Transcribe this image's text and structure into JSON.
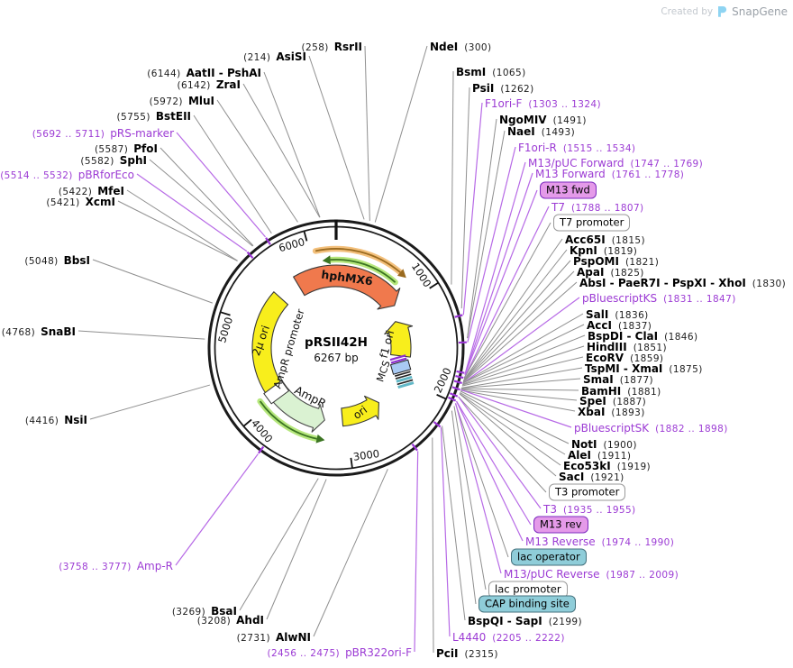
{
  "watermark": {
    "created_by": "Created by",
    "brand": "SnapGene"
  },
  "plasmid": {
    "name": "pRSII42H",
    "size": "6267 bp",
    "length_bp": 6267
  },
  "axis_ticks": [
    {
      "label": "1000"
    },
    {
      "label": "2000"
    },
    {
      "label": "3000"
    },
    {
      "label": "4000"
    },
    {
      "label": "5000"
    },
    {
      "label": "6000"
    }
  ],
  "features": [
    {
      "name": "hphMX6",
      "label": "hphMX6",
      "color": "#f0794d"
    },
    {
      "name": "f1 ori",
      "label": "f1 ori",
      "color": "#f8ee1c"
    },
    {
      "name": "ori",
      "label": "ori",
      "color": "#f8ee1c"
    },
    {
      "name": "AmpR",
      "label": "AmpR",
      "color": "#daf2d2"
    },
    {
      "name": "AmpR promoter",
      "label": "AmpR promoter",
      "color": "#ffffff"
    },
    {
      "name": "2µ ori",
      "label": "2µ ori",
      "color": "#f8ee1c"
    },
    {
      "name": "MCS",
      "label": "MCS",
      "color": "#a9caf3"
    }
  ],
  "colors": {
    "enzyme_text": "#000000",
    "position_text": "#1c1c1c",
    "primer_text": "#9c3bd4",
    "enzyme_line": "#8f8f8f",
    "primer_line": "#b76ae6",
    "ring": "#1b1b1b",
    "marker": "#9a35d6",
    "tag_purple_fill": "#e49ae9",
    "tag_purple_border": "#7c2abf",
    "tag_white_fill": "#ffffff",
    "tag_white_border": "#999999",
    "tag_teal_fill": "#8fcdd9",
    "tag_teal_border": "#44717d"
  },
  "callouts": [
    {
      "name": "RsrII",
      "pos": "(258)",
      "kind": "enzyme",
      "side": "left"
    },
    {
      "name": "AsiSI",
      "pos": "(214)",
      "kind": "enzyme",
      "side": "left"
    },
    {
      "name": "AatII - PshAI",
      "pos": "(6144)",
      "kind": "enzyme",
      "side": "left"
    },
    {
      "name": "ZraI",
      "pos": "(6142)",
      "kind": "enzyme",
      "side": "left"
    },
    {
      "name": "MluI",
      "pos": "(5972)",
      "kind": "enzyme",
      "side": "left"
    },
    {
      "name": "BstEII",
      "pos": "(5755)",
      "kind": "enzyme",
      "side": "left"
    },
    {
      "name": "pRS-marker",
      "pos": "(5692 .. 5711)",
      "kind": "primer",
      "side": "left"
    },
    {
      "name": "PfoI",
      "pos": "(5587)",
      "kind": "enzyme",
      "side": "left"
    },
    {
      "name": "SphI",
      "pos": "(5582)",
      "kind": "enzyme",
      "side": "left"
    },
    {
      "name": "pBRforEco",
      "pos": "(5514 .. 5532)",
      "kind": "primer",
      "side": "left"
    },
    {
      "name": "MfeI",
      "pos": "(5422)",
      "kind": "enzyme",
      "side": "left"
    },
    {
      "name": "XcmI",
      "pos": "(5421)",
      "kind": "enzyme",
      "side": "left"
    },
    {
      "name": "BbsI",
      "pos": "(5048)",
      "kind": "enzyme",
      "side": "left"
    },
    {
      "name": "SnaBI",
      "pos": "(4768)",
      "kind": "enzyme",
      "side": "left"
    },
    {
      "name": "NsiI",
      "pos": "(4416)",
      "kind": "enzyme",
      "side": "left"
    },
    {
      "name": "Amp-R",
      "pos": "(3758 .. 3777)",
      "kind": "primer",
      "side": "left"
    },
    {
      "name": "BsaI",
      "pos": "(3269)",
      "kind": "enzyme",
      "side": "left"
    },
    {
      "name": "AhdI",
      "pos": "(3208)",
      "kind": "enzyme",
      "side": "left"
    },
    {
      "name": "AlwNI",
      "pos": "(2731)",
      "kind": "enzyme",
      "side": "left"
    },
    {
      "name": "pBR322ori-F",
      "pos": "(2456 .. 2475)",
      "kind": "primer",
      "side": "left"
    },
    {
      "name": "NdeI",
      "pos": "(300)",
      "kind": "enzyme",
      "side": "right"
    },
    {
      "name": "BsmI",
      "pos": "(1065)",
      "kind": "enzyme",
      "side": "right"
    },
    {
      "name": "PsiI",
      "pos": "(1262)",
      "kind": "enzyme",
      "side": "right"
    },
    {
      "name": "F1ori-F",
      "pos": "(1303 .. 1324)",
      "kind": "primer",
      "side": "right"
    },
    {
      "name": "NgoMIV",
      "pos": "(1491)",
      "kind": "enzyme",
      "side": "right"
    },
    {
      "name": "NaeI",
      "pos": "(1493)",
      "kind": "enzyme",
      "side": "right"
    },
    {
      "name": "F1ori-R",
      "pos": "(1515 .. 1534)",
      "kind": "primer",
      "side": "right"
    },
    {
      "name": "M13/pUC Forward",
      "pos": "(1747 .. 1769)",
      "kind": "primer",
      "side": "right"
    },
    {
      "name": "M13 Forward",
      "pos": "(1761 .. 1778)",
      "kind": "primer",
      "side": "right"
    },
    {
      "name": "M13 fwd",
      "pos": "",
      "kind": "tag-purple",
      "side": "right"
    },
    {
      "name": "T7",
      "pos": "(1788 .. 1807)",
      "kind": "primer",
      "side": "right"
    },
    {
      "name": "T7 promoter",
      "pos": "",
      "kind": "tag-white",
      "side": "right"
    },
    {
      "name": "Acc65I",
      "pos": "(1815)",
      "kind": "enzyme",
      "side": "right"
    },
    {
      "name": "KpnI",
      "pos": "(1819)",
      "kind": "enzyme",
      "side": "right"
    },
    {
      "name": "PspOMI",
      "pos": "(1821)",
      "kind": "enzyme",
      "side": "right"
    },
    {
      "name": "ApaI",
      "pos": "(1825)",
      "kind": "enzyme",
      "side": "right"
    },
    {
      "name": "AbsI - PaeR7I - PspXI - XhoI",
      "pos": "(1830)",
      "kind": "enzyme",
      "side": "right"
    },
    {
      "name": "pBluescriptKS",
      "pos": "(1831 .. 1847)",
      "kind": "primer",
      "side": "right"
    },
    {
      "name": "SalI",
      "pos": "(1836)",
      "kind": "enzyme",
      "side": "right"
    },
    {
      "name": "AccI",
      "pos": "(1837)",
      "kind": "enzyme",
      "side": "right"
    },
    {
      "name": "BspDI - ClaI",
      "pos": "(1846)",
      "kind": "enzyme",
      "side": "right"
    },
    {
      "name": "HindIII",
      "pos": "(1851)",
      "kind": "enzyme",
      "side": "right"
    },
    {
      "name": "EcoRV",
      "pos": "(1859)",
      "kind": "enzyme",
      "side": "right"
    },
    {
      "name": "TspMI - XmaI",
      "pos": "(1875)",
      "kind": "enzyme",
      "side": "right"
    },
    {
      "name": "SmaI",
      "pos": "(1877)",
      "kind": "enzyme",
      "side": "right"
    },
    {
      "name": "BamHI",
      "pos": "(1881)",
      "kind": "enzyme",
      "side": "right"
    },
    {
      "name": "SpeI",
      "pos": "(1887)",
      "kind": "enzyme",
      "side": "right"
    },
    {
      "name": "XbaI",
      "pos": "(1893)",
      "kind": "enzyme",
      "side": "right"
    },
    {
      "name": "pBluescriptSK",
      "pos": "(1882 .. 1898)",
      "kind": "primer",
      "side": "right"
    },
    {
      "name": "NotI",
      "pos": "(1900)",
      "kind": "enzyme",
      "side": "right"
    },
    {
      "name": "AleI",
      "pos": "(1911)",
      "kind": "enzyme",
      "side": "right"
    },
    {
      "name": "Eco53kI",
      "pos": "(1919)",
      "kind": "enzyme",
      "side": "right"
    },
    {
      "name": "SacI",
      "pos": "(1921)",
      "kind": "enzyme",
      "side": "right"
    },
    {
      "name": "T3 promoter",
      "pos": "",
      "kind": "tag-white",
      "side": "right"
    },
    {
      "name": "T3",
      "pos": "(1935 .. 1955)",
      "kind": "primer",
      "side": "right"
    },
    {
      "name": "M13 rev",
      "pos": "",
      "kind": "tag-purple",
      "side": "right"
    },
    {
      "name": "M13 Reverse",
      "pos": "(1974 .. 1990)",
      "kind": "primer",
      "side": "right"
    },
    {
      "name": "lac operator",
      "pos": "",
      "kind": "tag-teal",
      "side": "right"
    },
    {
      "name": "M13/pUC Reverse",
      "pos": "(1987 .. 2009)",
      "kind": "primer",
      "side": "right"
    },
    {
      "name": "lac promoter",
      "pos": "",
      "kind": "tag-white",
      "side": "right"
    },
    {
      "name": "CAP binding site",
      "pos": "",
      "kind": "tag-teal",
      "side": "right"
    },
    {
      "name": "BspQI - SapI",
      "pos": "(2199)",
      "kind": "enzyme",
      "side": "right"
    },
    {
      "name": "L4440",
      "pos": "(2205 .. 2222)",
      "kind": "primer",
      "side": "right"
    },
    {
      "name": "PciI",
      "pos": "(2315)",
      "kind": "enzyme",
      "side": "right"
    }
  ]
}
